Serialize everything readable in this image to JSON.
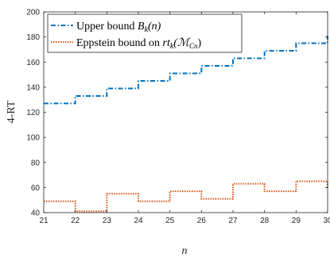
{
  "chart_data": {
    "type": "line",
    "title": "",
    "xlabel": "n",
    "ylabel": "4-RT",
    "xlim": [
      21,
      30
    ],
    "ylim": [
      40,
      200
    ],
    "xticks": [
      21,
      22,
      23,
      24,
      25,
      26,
      27,
      28,
      29,
      30
    ],
    "yticks": [
      40,
      60,
      80,
      100,
      120,
      140,
      160,
      180,
      200
    ],
    "grid": false,
    "legend_position": "top-left",
    "series": [
      {
        "name": "Upper bound B_k(n)",
        "legend_plain": "Upper bound ",
        "legend_math_main": "B",
        "legend_math_sub": "k",
        "legend_math_tail": "(n)",
        "style": "dash-dot",
        "color": "#0072BD",
        "x": [
          21,
          22,
          23,
          24,
          25,
          26,
          27,
          28,
          29,
          30
        ],
        "y": [
          127,
          133,
          139,
          145,
          151,
          157,
          163,
          169,
          175,
          181
        ]
      },
      {
        "name": "Eppstein bound on rt_k(M_{C_n})",
        "legend_plain": "Eppstein bound on ",
        "legend_math_main": "rt",
        "legend_math_sub": "k",
        "legend_math_tail": "(ℳ",
        "legend_math_sub2": "Cn",
        "legend_math_close": ")",
        "style": "dotted",
        "color": "#D95319",
        "x": [
          21,
          22,
          23,
          24,
          25,
          26,
          27,
          28,
          29,
          30
        ],
        "y": [
          49,
          41,
          55,
          49,
          57,
          51,
          63,
          57,
          65,
          59
        ]
      }
    ]
  }
}
